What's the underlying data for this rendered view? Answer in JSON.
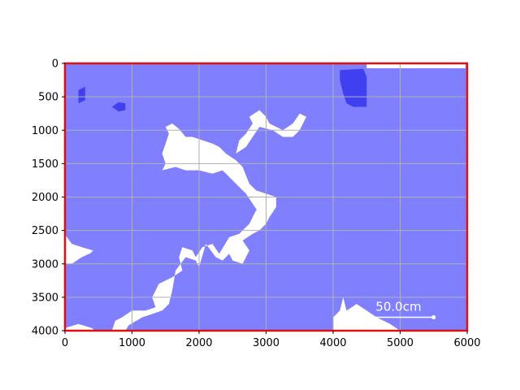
{
  "chart_data": {
    "type": "image-map",
    "x": {
      "lim": [
        0,
        6000
      ],
      "ticks": [
        0,
        1000,
        2000,
        3000,
        4000,
        5000,
        6000
      ],
      "tick_labels": [
        "0",
        "1000",
        "2000",
        "3000",
        "4000",
        "5000",
        "6000"
      ]
    },
    "y": {
      "lim": [
        0,
        4000
      ],
      "inverted": true,
      "ticks": [
        0,
        500,
        1000,
        1500,
        2000,
        2500,
        3000,
        3500,
        4000
      ],
      "tick_labels": [
        "0",
        "500",
        "1000",
        "1500",
        "2000",
        "2500",
        "3000",
        "3500",
        "4000"
      ]
    },
    "grid": true,
    "colors": {
      "water": "#8080ff",
      "deep_water": "#4040f0",
      "land": "#ffffff",
      "frame": "#e01010",
      "grid": "#b0b0b0",
      "scalebar": "#ffffff"
    },
    "land_regions": [
      {
        "name": "bottom-left land",
        "points": [
          [
            0,
            4000
          ],
          [
            0,
            3960
          ],
          [
            200,
            3900
          ],
          [
            400,
            3960
          ],
          [
            450,
            4000
          ]
        ]
      },
      {
        "name": "left peninsula",
        "points": [
          [
            0,
            2560
          ],
          [
            100,
            2700
          ],
          [
            280,
            2760
          ],
          [
            420,
            2800
          ],
          [
            380,
            2840
          ],
          [
            250,
            2900
          ],
          [
            100,
            3000
          ],
          [
            0,
            3000
          ]
        ]
      },
      {
        "name": "south-central land mass",
        "points": [
          [
            900,
            4000
          ],
          [
            950,
            3920
          ],
          [
            1150,
            3800
          ],
          [
            1450,
            3700
          ],
          [
            1550,
            3600
          ],
          [
            1600,
            3400
          ],
          [
            1650,
            3100
          ],
          [
            1800,
            2900
          ],
          [
            1950,
            2950
          ],
          [
            2000,
            3050
          ],
          [
            2100,
            2700
          ],
          [
            2250,
            2900
          ],
          [
            2350,
            2950
          ],
          [
            2450,
            2850
          ],
          [
            2500,
            2950
          ],
          [
            2650,
            3000
          ],
          [
            2750,
            2800
          ],
          [
            2650,
            2650
          ],
          [
            2800,
            2550
          ],
          [
            2900,
            2500
          ],
          [
            3000,
            2400
          ],
          [
            3050,
            2250
          ],
          [
            2950,
            2150
          ],
          [
            2850,
            2200
          ],
          [
            2750,
            2400
          ],
          [
            2600,
            2550
          ],
          [
            2450,
            2600
          ],
          [
            2300,
            2850
          ],
          [
            2200,
            2700
          ],
          [
            2050,
            2750
          ],
          [
            1950,
            2900
          ],
          [
            1900,
            2800
          ],
          [
            1750,
            2750
          ],
          [
            1700,
            2900
          ],
          [
            1750,
            3100
          ],
          [
            1600,
            3200
          ],
          [
            1500,
            3250
          ],
          [
            1400,
            3300
          ],
          [
            1350,
            3400
          ],
          [
            1300,
            3500
          ],
          [
            1350,
            3650
          ],
          [
            1200,
            3700
          ],
          [
            1000,
            3700
          ],
          [
            850,
            3800
          ],
          [
            750,
            3850
          ],
          [
            700,
            4000
          ]
        ]
      },
      {
        "name": "central land with bay",
        "points": [
          [
            1450,
            1600
          ],
          [
            1500,
            1500
          ],
          [
            1450,
            1350
          ],
          [
            1500,
            1200
          ],
          [
            1550,
            1050
          ],
          [
            1500,
            950
          ],
          [
            1600,
            900
          ],
          [
            1700,
            980
          ],
          [
            1800,
            1100
          ],
          [
            1900,
            1100
          ],
          [
            2050,
            1150
          ],
          [
            2200,
            1200
          ],
          [
            2300,
            1250
          ],
          [
            2400,
            1350
          ],
          [
            2550,
            1450
          ],
          [
            2650,
            1550
          ],
          [
            2750,
            1800
          ],
          [
            2850,
            1900
          ],
          [
            3000,
            1950
          ],
          [
            3150,
            2000
          ],
          [
            3150,
            2150
          ],
          [
            3050,
            2300
          ],
          [
            3000,
            2400
          ],
          [
            2900,
            2250
          ],
          [
            2800,
            2100
          ],
          [
            2700,
            1950
          ],
          [
            2550,
            1800
          ],
          [
            2450,
            1700
          ],
          [
            2350,
            1600
          ],
          [
            2200,
            1650
          ],
          [
            2000,
            1600
          ],
          [
            1800,
            1600
          ],
          [
            1650,
            1550
          ]
        ]
      },
      {
        "name": "northern island",
        "points": [
          [
            2600,
            1150
          ],
          [
            2700,
            1050
          ],
          [
            2800,
            900
          ],
          [
            2750,
            800
          ],
          [
            2900,
            700
          ],
          [
            3000,
            800
          ],
          [
            3050,
            900
          ],
          [
            3250,
            1000
          ],
          [
            3400,
            900
          ],
          [
            3500,
            750
          ],
          [
            3600,
            800
          ],
          [
            3500,
            1000
          ],
          [
            3400,
            1100
          ],
          [
            3250,
            1100
          ],
          [
            3100,
            1000
          ],
          [
            2900,
            950
          ],
          [
            2800,
            1100
          ],
          [
            2700,
            1250
          ],
          [
            2550,
            1350
          ]
        ]
      },
      {
        "name": "east land mass",
        "points": [
          [
            4000,
            4000
          ],
          [
            4000,
            3800
          ],
          [
            4100,
            3700
          ],
          [
            4150,
            3500
          ],
          [
            4200,
            3700
          ],
          [
            4350,
            3600
          ],
          [
            4500,
            3700
          ],
          [
            4650,
            3800
          ],
          [
            4850,
            3900
          ],
          [
            5000,
            4000
          ]
        ]
      }
    ],
    "deep_water_regions": [
      {
        "name": "north-east deep channel",
        "points": [
          [
            4100,
            100
          ],
          [
            4450,
            80
          ],
          [
            4500,
            200
          ],
          [
            4500,
            650
          ],
          [
            4300,
            650
          ],
          [
            4200,
            600
          ],
          [
            4150,
            450
          ],
          [
            4100,
            250
          ]
        ]
      },
      {
        "name": "north-west deep pocket",
        "points": [
          [
            700,
            650
          ],
          [
            800,
            580
          ],
          [
            900,
            600
          ],
          [
            900,
            700
          ],
          [
            800,
            720
          ]
        ]
      },
      {
        "name": "north-west deep strip",
        "points": [
          [
            200,
            400
          ],
          [
            300,
            350
          ],
          [
            300,
            550
          ],
          [
            200,
            600
          ]
        ]
      }
    ],
    "scalebar": {
      "label": "50.0cm",
      "x_start": 4450,
      "x_end": 5500,
      "y": 3800
    }
  }
}
